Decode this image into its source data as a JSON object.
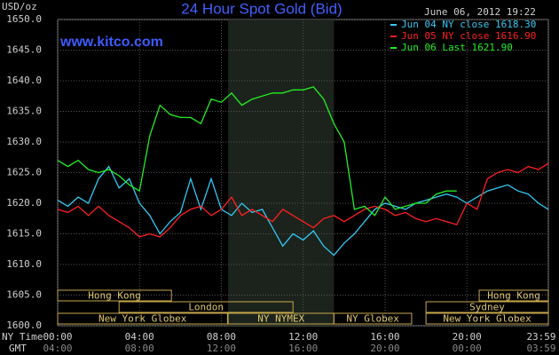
{
  "chart_data": {
    "type": "line",
    "title": "24 Hour Spot Gold (Bid)",
    "timestamp": "June 06, 2012 19:22",
    "website": "www.kitco.com",
    "y_label": "USD/oz",
    "x_label": "NY Time",
    "x2_label": "GMT",
    "x": [
      0,
      0.5,
      1,
      1.5,
      2,
      2.5,
      3,
      3.5,
      4,
      4.5,
      5,
      5.5,
      6,
      6.5,
      7,
      7.5,
      8,
      8.5,
      9,
      9.5,
      10,
      10.5,
      11,
      11.5,
      12,
      12.5,
      13,
      13.5,
      14,
      14.5,
      15,
      15.5,
      16,
      16.5,
      17,
      17.5,
      18,
      18.5,
      19,
      19.5,
      20,
      20.5,
      21,
      21.5,
      22,
      22.5,
      23,
      23.5,
      23.98
    ],
    "series": [
      {
        "name": "Jun 04 NY close 1618.30",
        "color": "#33c8f5",
        "values": [
          1620.5,
          1619.5,
          1621,
          1620,
          1624,
          1626,
          1622.5,
          1624,
          1620,
          1618,
          1615,
          1617,
          1618.5,
          1624,
          1619,
          1624,
          1619,
          1618,
          1620,
          1618.5,
          1619,
          1616,
          1613,
          1615,
          1614,
          1615.5,
          1613,
          1611.5,
          1613.5,
          1615,
          1617,
          1619,
          1620,
          1619.5,
          1619,
          1620,
          1620.5,
          1621,
          1621.5,
          1621,
          1620,
          1621,
          1622,
          1622.5,
          1623,
          1622,
          1621.5,
          1620,
          1619
        ]
      },
      {
        "name": "Jun 05 NY close 1616.90",
        "color": "#ff2020",
        "values": [
          1619,
          1618.5,
          1619.5,
          1618,
          1619.5,
          1618,
          1617,
          1616,
          1614.5,
          1615,
          1614.5,
          1616,
          1618,
          1619,
          1619.5,
          1618,
          1619,
          1621,
          1618,
          1619,
          1618,
          1617,
          1619,
          1618,
          1617,
          1616,
          1617.5,
          1618,
          1617,
          1618,
          1619,
          1619.5,
          1619,
          1618,
          1618.5,
          1617.5,
          1617,
          1617.5,
          1617,
          1616.5,
          1620,
          1619,
          1624,
          1625,
          1625.5,
          1625,
          1626,
          1625.5,
          1626.5
        ]
      },
      {
        "name": "Jun 06 Last 1621.90",
        "color": "#22ee22",
        "values": [
          1627,
          1626,
          1627,
          1625.5,
          1625,
          1625.5,
          1624.5,
          1623,
          1622,
          1631,
          1636,
          1634.5,
          1634,
          1634,
          1633,
          1637,
          1636.5,
          1638,
          1636,
          1637,
          1637.5,
          1638,
          1638,
          1638.5,
          1638.5,
          1639,
          1637,
          1633,
          1630,
          1619,
          1619.5,
          1618,
          1621,
          1619,
          1619.5,
          1620,
          1620,
          1621.5,
          1622,
          1622,
          null,
          null,
          null,
          null,
          null,
          null,
          null,
          null,
          null
        ]
      }
    ],
    "xlim": [
      0,
      23.98
    ],
    "xticks": [
      {
        "value": 0,
        "label": "00:00"
      },
      {
        "value": 4,
        "label": "04:00"
      },
      {
        "value": 8,
        "label": "08:00"
      },
      {
        "value": 12,
        "label": "12:00"
      },
      {
        "value": 16,
        "label": "16:00"
      },
      {
        "value": 20,
        "label": "20:00"
      },
      {
        "value": 23.98,
        "label": "23:59"
      }
    ],
    "x2ticks": [
      {
        "value": 0,
        "label": "04:00"
      },
      {
        "value": 4,
        "label": "08:00"
      },
      {
        "value": 8,
        "label": "12:00"
      },
      {
        "value": 12,
        "label": "16:00"
      },
      {
        "value": 16,
        "label": "20:00"
      },
      {
        "value": 20,
        "label": "00:00"
      },
      {
        "value": 23.98,
        "label": "03:59"
      }
    ],
    "ylim": [
      1600,
      1650
    ],
    "yticks": [
      {
        "value": 1600,
        "label": "1600.0"
      },
      {
        "value": 1605,
        "label": "1605.0"
      },
      {
        "value": 1610,
        "label": "1610.0"
      },
      {
        "value": 1615,
        "label": "1615.0"
      },
      {
        "value": 1620,
        "label": "1620.0"
      },
      {
        "value": 1625,
        "label": "1625.0"
      },
      {
        "value": 1630,
        "label": "1630.0"
      },
      {
        "value": 1635,
        "label": "1635.0"
      },
      {
        "value": 1640,
        "label": "1640.0"
      },
      {
        "value": 1645,
        "label": "1645.0"
      },
      {
        "value": 1650,
        "label": "1650.0"
      }
    ],
    "grid": true,
    "sessions": [
      {
        "label": "Hong Kong",
        "row": 0,
        "start": 0,
        "end": 5.56
      },
      {
        "label": "Hong Kong",
        "row": 0,
        "start": 20.6,
        "end": 23.98
      },
      {
        "label": "London",
        "row": 1,
        "start": 3,
        "end": 11.5
      },
      {
        "label": "Sydney",
        "row": 1,
        "start": 18,
        "end": 23.98
      },
      {
        "label": "New York Globex",
        "row": 2,
        "start": 0,
        "end": 8.3
      },
      {
        "label": "NY NYMEX",
        "row": 2,
        "start": 8.33,
        "end": 13.5,
        "highlight": true
      },
      {
        "label": "NY Globex",
        "row": 2,
        "start": 13.5,
        "end": 17.3
      },
      {
        "label": "New York Globex",
        "row": 2,
        "start": 18,
        "end": 23.98
      }
    ]
  }
}
